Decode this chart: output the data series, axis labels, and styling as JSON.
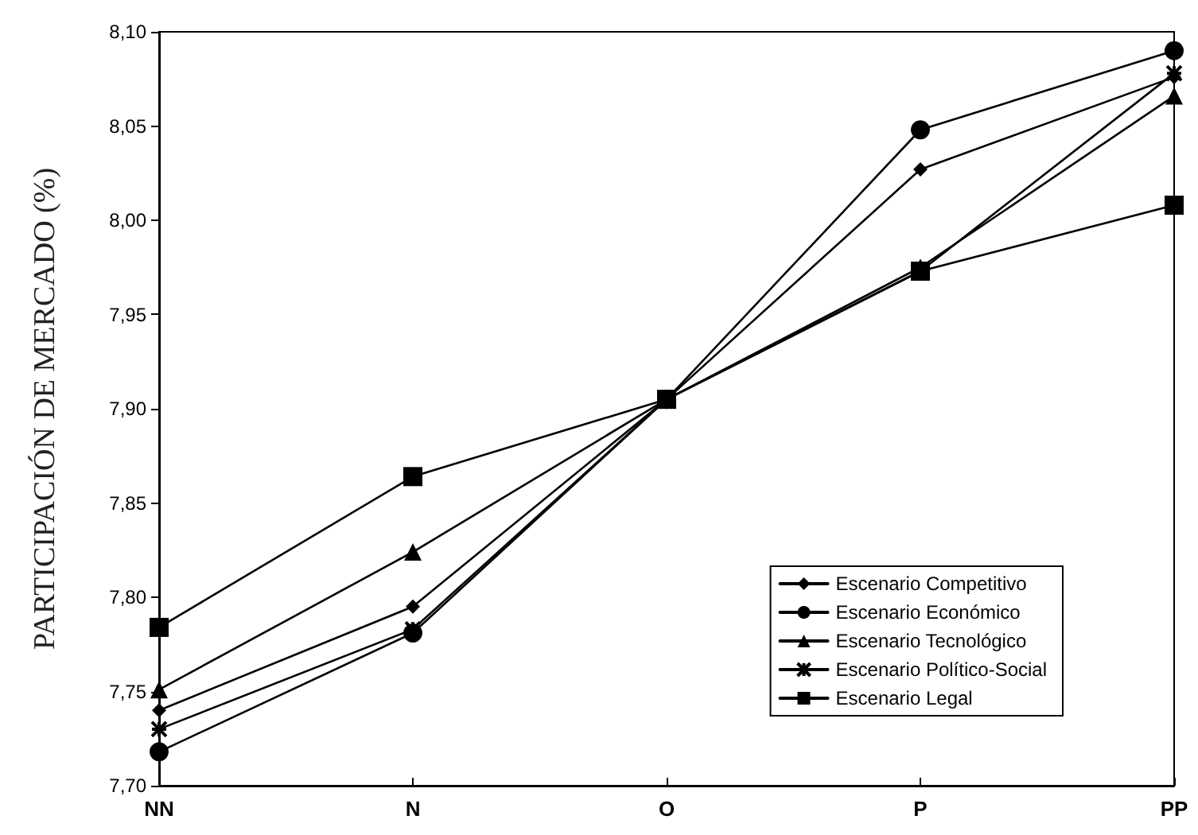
{
  "chart_data": {
    "type": "line",
    "ylabel": "PARTICIPACIÓN DE MERCADO (%)",
    "categories": [
      "NN",
      "N",
      "O",
      "P",
      "PP"
    ],
    "series": [
      {
        "name": "Escenario Competitivo",
        "color": "#000000",
        "marker": "diamond",
        "values": [
          7.74,
          7.795,
          7.905,
          8.027,
          8.076
        ]
      },
      {
        "name": "Escenario Económico",
        "color": "#000000",
        "marker": "circle",
        "values": [
          7.718,
          7.781,
          7.905,
          8.048,
          8.09
        ]
      },
      {
        "name": "Escenario Tecnológico",
        "color": "#000000",
        "marker": "triangle",
        "values": [
          7.751,
          7.824,
          7.905,
          7.975,
          8.066
        ]
      },
      {
        "name": "Escenario Político-Social",
        "color": "#000000",
        "marker": "cross",
        "values": [
          7.73,
          7.783,
          7.905,
          7.973,
          8.078
        ]
      },
      {
        "name": "Escenario Legal",
        "color": "#000000",
        "marker": "square",
        "values": [
          7.784,
          7.864,
          7.905,
          7.973,
          8.008
        ]
      }
    ],
    "ylim": [
      7.7,
      8.1
    ],
    "yticks": [
      {
        "value": 7.7,
        "label": "7,70"
      },
      {
        "value": 7.75,
        "label": "7,75"
      },
      {
        "value": 7.8,
        "label": "7,80"
      },
      {
        "value": 7.85,
        "label": "7,85"
      },
      {
        "value": 7.9,
        "label": "7,90"
      },
      {
        "value": 7.95,
        "label": "7,95"
      },
      {
        "value": 8.0,
        "label": "8,00"
      },
      {
        "value": 8.05,
        "label": "8,05"
      },
      {
        "value": 8.1,
        "label": "8,10"
      }
    ],
    "grid": false,
    "legend": "bottom right",
    "line_style": "solid"
  }
}
